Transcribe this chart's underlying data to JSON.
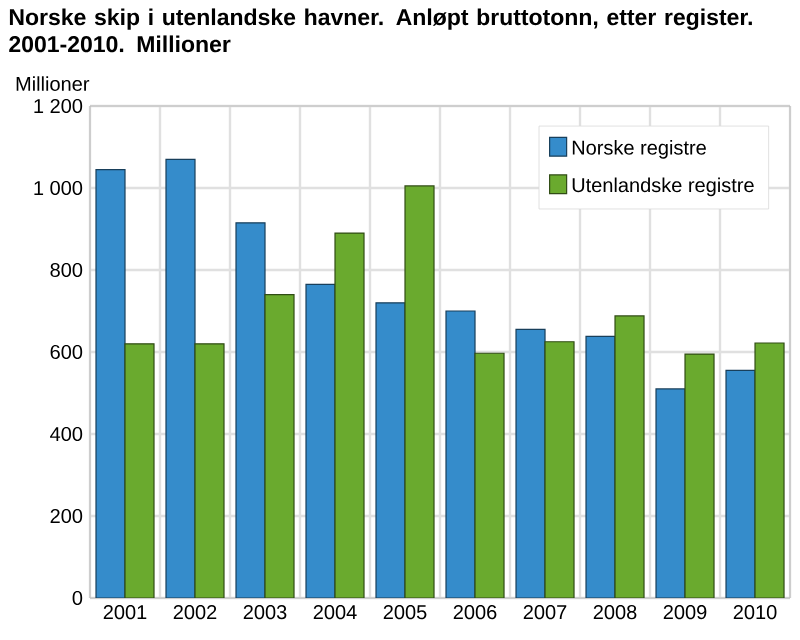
{
  "chart_data": {
    "type": "bar",
    "title": "Norske skip i utenlandske havner. Anløpt bruttotonn, etter register. 2001-2010. Millioner",
    "ylabel": "Millioner",
    "categories": [
      "2001",
      "2002",
      "2003",
      "2004",
      "2005",
      "2006",
      "2007",
      "2008",
      "2009",
      "2010"
    ],
    "series": [
      {
        "name": "Norske registre",
        "color": "#358ccb",
        "values": [
          1045,
          1070,
          915,
          765,
          720,
          700,
          655,
          638,
          510,
          555
        ]
      },
      {
        "name": "Utenlandske registre",
        "color": "#6aaa2e",
        "values": [
          620,
          620,
          740,
          890,
          1005,
          597,
          625,
          688,
          595,
          622
        ]
      }
    ],
    "ylim": [
      0,
      1200
    ],
    "yticks": [
      0,
      200,
      400,
      600,
      800,
      {
        "value": 1000,
        "label": "1 000"
      },
      {
        "value": 1200,
        "label": "1 200"
      }
    ],
    "grid": true,
    "legend": "top right"
  }
}
